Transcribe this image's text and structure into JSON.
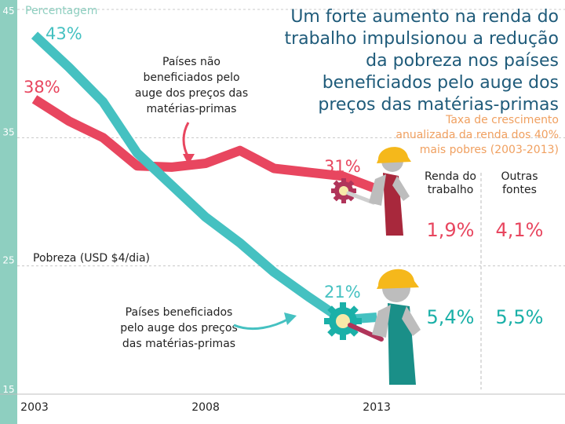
{
  "title": "Um forte aumento na renda do trabalho impulsionou a redução da pobreza nos países beneficiados pelo auge dos preços das matérias-primas",
  "title_lines": [
    "Um forte aumento na renda do",
    "trabalho impulsionou a redução",
    "da pobreza nos países",
    "beneficiados pelo auge dos",
    "preços das matérias-primas"
  ],
  "subtitle_lines": [
    "Taxa de crescimento",
    "anualizada da renda dos 40%",
    "mais pobres (2003-2013)"
  ],
  "colors": {
    "teal": "#45c1c1",
    "red": "#e8465f",
    "axis_band": "#8ecfc0",
    "title": "#1f5b7a",
    "subtitle": "#f0a060",
    "gear_teal": "#1ab0a8",
    "gear_red": "#b0345a",
    "helmet": "#f5b81b"
  },
  "chart_data": {
    "type": "line",
    "ylabel": "Percentagem",
    "ylim": [
      15,
      45
    ],
    "yticks": [
      "45",
      "35",
      "25",
      "15"
    ],
    "xlim": [
      2003,
      2018.5
    ],
    "xticks": [
      "2003",
      "2008",
      "2013"
    ],
    "reference_line": {
      "y": 25,
      "label": "Pobreza (USD $4/dia)"
    },
    "series": [
      {
        "name_lines": [
          "Países não",
          "beneficiados pelo",
          "auge dos preços das",
          "matérias-primas"
        ],
        "color": "#e8465f",
        "x": [
          2003,
          2004,
          2005,
          2006,
          2007,
          2008,
          2009,
          2010,
          2011,
          2012,
          2013
        ],
        "values": [
          38,
          36.3,
          35,
          32.8,
          32.7,
          33,
          34,
          32.6,
          32.3,
          32,
          31
        ],
        "start_label": "38%",
        "end_label": "31%"
      },
      {
        "name_lines": [
          "Países beneficiados",
          "pelo auge dos preços",
          "das matérias-primas"
        ],
        "color": "#45c1c1",
        "x": [
          2003,
          2004,
          2005,
          2006,
          2007,
          2008,
          2009,
          2010,
          2011,
          2012,
          2013
        ],
        "values": [
          43,
          40.5,
          37.8,
          33.8,
          31.3,
          28.8,
          26.8,
          24.5,
          22.6,
          20.8,
          21
        ],
        "start_label": "43%",
        "end_label": "21%"
      }
    ]
  },
  "table": {
    "headers": [
      [
        "Renda do",
        "trabalho"
      ],
      [
        "Outras",
        "fontes"
      ]
    ],
    "rows": [
      {
        "values": [
          "1,9%",
          "4,1%"
        ],
        "color": "#e8465f"
      },
      {
        "values": [
          "5,4%",
          "5,5%"
        ],
        "color": "#1ab0a8"
      }
    ]
  }
}
